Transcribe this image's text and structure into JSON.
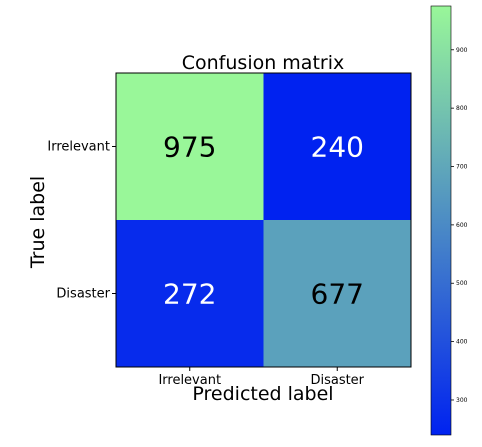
{
  "chart_data": {
    "type": "heatmap",
    "title": "Confusion matrix",
    "xlabel": "Predicted label",
    "ylabel": "True label",
    "x_categories": [
      "Irrelevant",
      "Disaster"
    ],
    "y_categories": [
      "Irrelevant",
      "Disaster"
    ],
    "values": [
      [
        975,
        240
      ],
      [
        272,
        677
      ]
    ],
    "colormap": [
      "#0022f0",
      "#99f799"
    ],
    "colorbar": {
      "min": 240,
      "max": 975,
      "ticks": [
        300,
        400,
        500,
        600,
        700,
        800,
        900
      ]
    },
    "cell_text_colors": [
      [
        "#000000",
        "#ffffff"
      ],
      [
        "#ffffff",
        "#000000"
      ]
    ]
  }
}
